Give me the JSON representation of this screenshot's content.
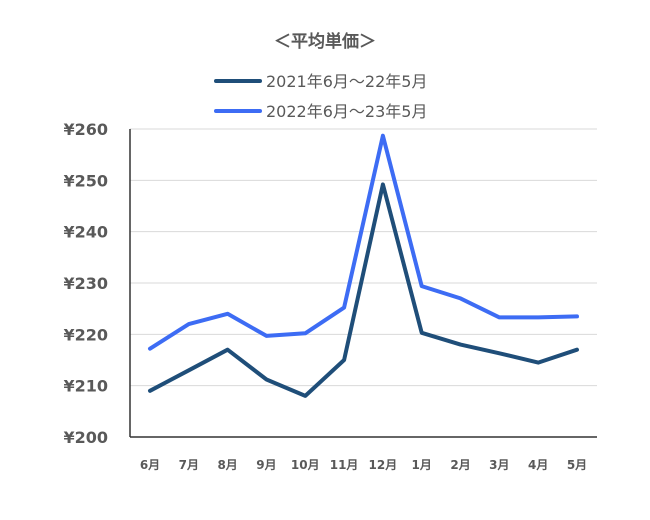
{
  "chart_data": {
    "type": "line",
    "title": "＜平均単価＞",
    "categories": [
      "6月",
      "7月",
      "8月",
      "9月",
      "10月",
      "11月",
      "12月",
      "1月",
      "2月",
      "3月",
      "4月",
      "5月"
    ],
    "y_tick_labels": [
      "¥200",
      "¥210",
      "¥220",
      "¥230",
      "¥240",
      "¥250",
      "¥260"
    ],
    "ylim": [
      200,
      260
    ],
    "grid": true,
    "legend_position": "top",
    "series": [
      {
        "name": "2021年6月～22年5月",
        "color": "#1f4e79",
        "values": [
          209,
          213,
          217,
          211.2,
          208,
          215,
          249.2,
          220.3,
          218,
          216.3,
          214.5,
          217
        ]
      },
      {
        "name": "2022年6月～23年5月",
        "color": "#3d6cf4",
        "values": [
          217.2,
          222,
          224,
          219.7,
          220.2,
          225.2,
          258.7,
          229.4,
          227,
          223.3,
          223.3,
          223.5
        ]
      }
    ]
  }
}
